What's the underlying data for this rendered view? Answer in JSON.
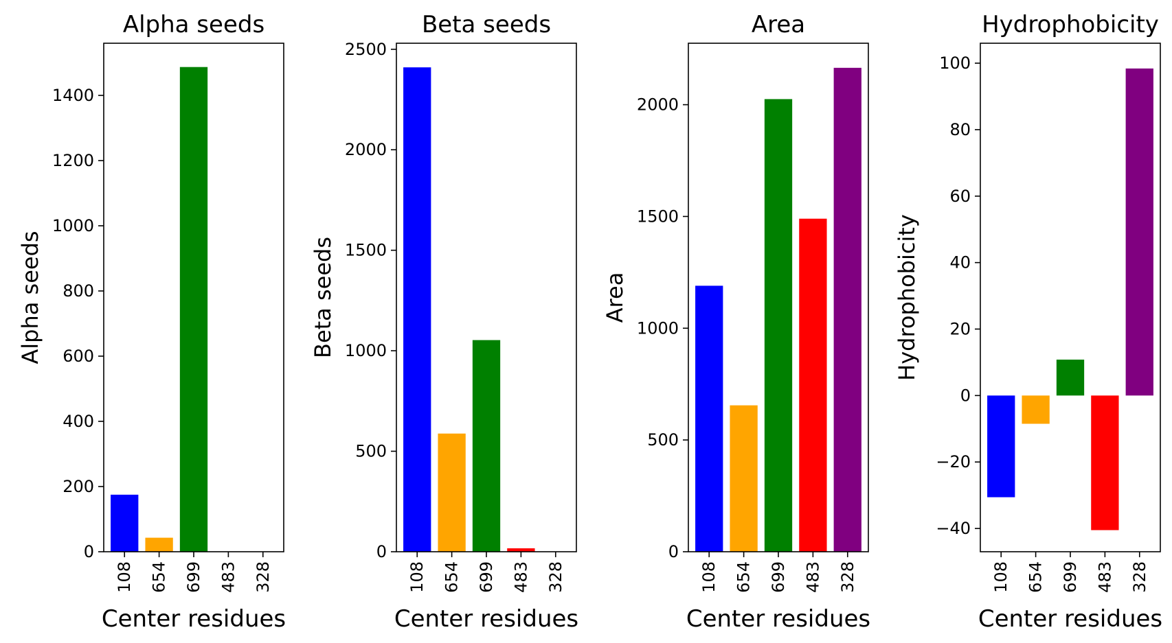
{
  "colors": {
    "bars": [
      "#0000ff",
      "#ffa500",
      "#008000",
      "#ff0000",
      "#800080"
    ],
    "axes": "#000000",
    "background": "#ffffff"
  },
  "chart_data": [
    {
      "type": "bar",
      "title": "Alpha seeds",
      "xlabel": "Center residues",
      "ylabel": "Alpha seeds",
      "categories": [
        "108",
        "654",
        "699",
        "483",
        "328"
      ],
      "values": [
        175,
        43,
        1487,
        0,
        0
      ],
      "ylim": [
        0,
        1560
      ],
      "yticks": [
        0,
        200,
        400,
        600,
        800,
        1000,
        1200,
        1400
      ],
      "ytick_labels": [
        "0",
        "200",
        "400",
        "600",
        "800",
        "1000",
        "1200",
        "1400"
      ],
      "grid": false,
      "legend": "none"
    },
    {
      "type": "bar",
      "title": "Beta seeds",
      "xlabel": "Center residues",
      "ylabel": "Beta seeds",
      "categories": [
        "108",
        "654",
        "699",
        "483",
        "328"
      ],
      "values": [
        2410,
        588,
        1053,
        17,
        0
      ],
      "ylim": [
        0,
        2530
      ],
      "yticks": [
        0,
        500,
        1000,
        1500,
        2000,
        2500
      ],
      "ytick_labels": [
        "0",
        "500",
        "1000",
        "1500",
        "2000",
        "2500"
      ],
      "grid": false,
      "legend": "none"
    },
    {
      "type": "bar",
      "title": "Area",
      "xlabel": "Center residues",
      "ylabel": "Area",
      "categories": [
        "108",
        "654",
        "699",
        "483",
        "328"
      ],
      "values": [
        1190,
        655,
        2025,
        1490,
        2165
      ],
      "ylim": [
        0,
        2275
      ],
      "yticks": [
        0,
        500,
        1000,
        1500,
        2000
      ],
      "ytick_labels": [
        "0",
        "500",
        "1000",
        "1500",
        "2000"
      ],
      "grid": false,
      "legend": "none"
    },
    {
      "type": "bar",
      "title": "Hydrophobicity",
      "xlabel": "Center residues",
      "ylabel": "Hydrophobicity",
      "categories": [
        "108",
        "654",
        "699",
        "483",
        "328"
      ],
      "values": [
        -30.6,
        -8.5,
        10.8,
        -40.5,
        98.4
      ],
      "ylim": [
        -47,
        106
      ],
      "yticks": [
        -40,
        -20,
        0,
        20,
        40,
        60,
        80,
        100
      ],
      "ytick_labels": [
        "−40",
        "−20",
        "0",
        "20",
        "40",
        "60",
        "80",
        "100"
      ],
      "grid": false,
      "legend": "none"
    }
  ]
}
